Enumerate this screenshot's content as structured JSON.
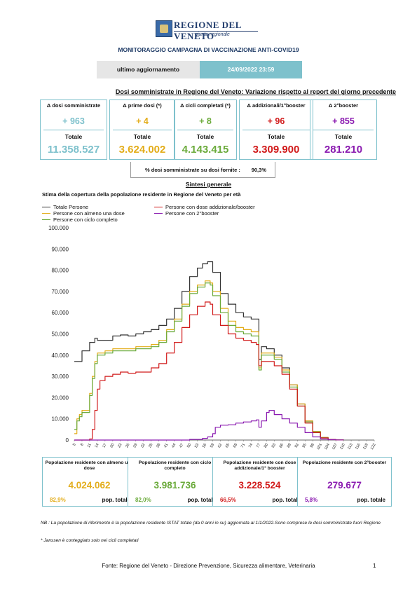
{
  "header": {
    "logo_name": "REGIONE DEL VENETO",
    "logo_sub": "giunta regionale",
    "title": "MONITORAGGIO CAMPAGNA DI VACCINAZIONE ANTI-COVID19",
    "update_label": "ultimo aggiornamento",
    "update_value": "24/09/2022 23:59"
  },
  "delta_section": {
    "title": "Dosi somministrate in Regione del Veneto: Variazione rispetto al report del giorno precedente",
    "total_label": "Totale",
    "cards": [
      {
        "label": "Δ dosi somministrate",
        "delta": "+ 963",
        "total": "11.358.527",
        "color": "#7ec1cc"
      },
      {
        "label": "Δ prime dosi (*)",
        "delta": "+ 4",
        "total": "3.624.002",
        "color": "#e3ad1b"
      },
      {
        "label": "Δ cicli completati (*)",
        "delta": "+ 8",
        "total": "4.143.415",
        "color": "#6aaa3a"
      },
      {
        "label": "Δ addizionali/1°booster",
        "delta": "+ 96",
        "total": "3.309.900",
        "color": "#d11a1a"
      },
      {
        "label": "Δ 2°booster",
        "delta": "+ 855",
        "total": "281.210",
        "color": "#8a1ab0"
      }
    ],
    "pct_label": "% dosi somministrate su dosi fornite :",
    "pct_value": "90,3%"
  },
  "synthesis": {
    "title": "Sintesi generale",
    "chart_title": "Stima della copertura della popolazione residente in Regione del Veneto per età"
  },
  "chart_data": {
    "type": "line",
    "title": "Stima della copertura della popolazione residente in Regione del Veneto per età",
    "xlabel": "",
    "ylabel": "",
    "ylim": [
      0,
      100000
    ],
    "yticks": [
      "0",
      "10.000",
      "20.000",
      "30.000",
      "40.000",
      "50.000",
      "60.000",
      "70.000",
      "80.000",
      "90.000",
      "100.000"
    ],
    "xticks": [
      "5",
      "8",
      "11",
      "14",
      "17",
      "20",
      "23",
      "26",
      "29",
      "32",
      "35",
      "38",
      "41",
      "44",
      "47",
      "50",
      "53",
      "56",
      "59",
      "62",
      "65",
      "68",
      "71",
      "74",
      "77",
      "80",
      "83",
      "86",
      "89",
      "92",
      "95",
      "98",
      "101",
      "104",
      "107",
      "110",
      "113",
      "116",
      "119",
      "122"
    ],
    "legend_position": "top",
    "grid": false,
    "series": [
      {
        "name": "Totale Persone",
        "color": "#333333",
        "x": [
          5,
          8,
          11,
          13,
          14,
          17,
          20,
          23,
          26,
          29,
          32,
          35,
          38,
          41,
          44,
          47,
          50,
          53,
          55,
          57,
          59,
          62,
          65,
          68,
          71,
          74,
          76,
          77,
          78,
          80,
          83,
          86,
          89,
          92,
          95,
          98,
          101,
          104,
          107,
          110
        ],
        "y": [
          37000,
          42000,
          46000,
          48000,
          47000,
          47000,
          49000,
          49500,
          49000,
          50000,
          51000,
          52000,
          54000,
          57000,
          62000,
          70000,
          77000,
          81000,
          83000,
          84000,
          79000,
          69000,
          64000,
          60000,
          58000,
          57000,
          57000,
          38000,
          44000,
          43000,
          40000,
          34000,
          26000,
          17000,
          9000,
          4000,
          1200,
          300,
          100,
          30
        ]
      },
      {
        "name": "Persone con almeno una dose",
        "color": "#e3ad1b",
        "x": [
          5,
          6,
          7,
          8,
          11,
          12,
          13,
          14,
          17,
          20,
          23,
          26,
          29,
          32,
          35,
          38,
          41,
          44,
          47,
          50,
          53,
          56,
          58,
          59,
          62,
          65,
          68,
          71,
          74,
          76,
          77,
          78,
          80,
          83,
          86,
          89,
          92,
          95,
          98,
          101,
          104,
          107,
          110
        ],
        "y": [
          3000,
          10000,
          12000,
          14000,
          22000,
          30000,
          37000,
          41000,
          42000,
          43000,
          43000,
          43000,
          44000,
          44000,
          45000,
          47000,
          52000,
          57000,
          64000,
          70000,
          73000,
          75000,
          74000,
          70000,
          62000,
          56000,
          53000,
          52000,
          51000,
          51000,
          34000,
          41000,
          41000,
          39000,
          33000,
          26000,
          17000,
          9000,
          4000,
          1200,
          300,
          100,
          30
        ]
      },
      {
        "name": "Persone con ciclo completo",
        "color": "#6aaa3a",
        "x": [
          5,
          6,
          7,
          8,
          11,
          12,
          13,
          14,
          17,
          20,
          23,
          26,
          29,
          32,
          35,
          38,
          41,
          44,
          47,
          50,
          53,
          56,
          58,
          59,
          62,
          65,
          68,
          71,
          74,
          76,
          77,
          78,
          80,
          83,
          86,
          89,
          92,
          95,
          98,
          101,
          104,
          107,
          110
        ],
        "y": [
          5000,
          9000,
          11000,
          13000,
          21000,
          29000,
          36000,
          40000,
          41000,
          42000,
          42000,
          42000,
          43000,
          43000,
          44000,
          46000,
          51000,
          56000,
          63000,
          69000,
          72000,
          74000,
          73000,
          68000,
          60000,
          54000,
          51000,
          50000,
          49000,
          49000,
          33000,
          40000,
          40000,
          38000,
          32000,
          25000,
          16000,
          8500,
          3800,
          1100,
          300,
          100,
          30
        ]
      },
      {
        "name": "Persone con dose addizionale/booster",
        "color": "#d11a1a",
        "x": [
          5,
          11,
          12,
          13,
          14,
          15,
          17,
          20,
          23,
          26,
          29,
          32,
          35,
          38,
          41,
          44,
          47,
          50,
          53,
          56,
          58,
          59,
          62,
          65,
          68,
          71,
          74,
          76,
          77,
          78,
          80,
          83,
          86,
          89,
          92,
          95,
          98,
          101,
          104,
          107,
          110
        ],
        "y": [
          0,
          500,
          5000,
          14000,
          24000,
          28000,
          30000,
          31000,
          32000,
          31500,
          32000,
          32000,
          34000,
          36000,
          41000,
          46000,
          53000,
          59000,
          63000,
          65000,
          64000,
          59000,
          54000,
          50000,
          48000,
          47000,
          46000,
          45000,
          35000,
          37000,
          37000,
          35000,
          31000,
          24000,
          16000,
          8000,
          3500,
          1000,
          250,
          80,
          20
        ]
      },
      {
        "name": "Persone con 2°booster",
        "color": "#8a1ab0",
        "x": [
          5,
          50,
          55,
          57,
          59,
          60,
          62,
          65,
          68,
          71,
          74,
          76,
          77,
          78,
          80,
          81,
          83,
          86,
          89,
          92,
          95,
          98,
          101,
          104,
          107,
          110
        ],
        "y": [
          0,
          300,
          800,
          1500,
          3000,
          6000,
          7000,
          7200,
          8000,
          8500,
          9000,
          9500,
          6000,
          9000,
          13000,
          14000,
          12000,
          10000,
          8000,
          6000,
          3500,
          1500,
          500,
          150,
          50,
          10
        ]
      }
    ]
  },
  "population_boxes": [
    {
      "heading": "Popolazione residente con almeno una dose",
      "value": "4.024.062",
      "pct": "82,9%",
      "pct_label": "pop. totale",
      "color": "#e3ad1b"
    },
    {
      "heading": "Popolazione residente con ciclo completo",
      "value": "3.981.736",
      "pct": "82,0%",
      "pct_label": "pop. totale",
      "color": "#6aaa3a"
    },
    {
      "heading": "Popolazione residente con dose addizionale/1° booster",
      "value": "3.228.524",
      "pct": "66,5%",
      "pct_label": "pop. totale",
      "color": "#d11a1a"
    },
    {
      "heading": "Popolazione residente con 2°booster",
      "value": "279.677",
      "pct": "5,8%",
      "pct_label": "pop. totale",
      "color": "#8a1ab0"
    }
  ],
  "notes": {
    "nb": "NB : La popolazione di riferimento è la popolazione residente ISTAT totale (da 0 anni in su) aggiornata  al 1/1/2022.Sono comprese le dosi somministrate fuori Regione",
    "janssen": "* Janssen è conteggiato solo nei cicli completati"
  },
  "footer": {
    "source": "Fonte: Regione del Veneto - Direzione Prevenzione, Sicurezza alimentare, Veterinaria",
    "page": "1"
  }
}
